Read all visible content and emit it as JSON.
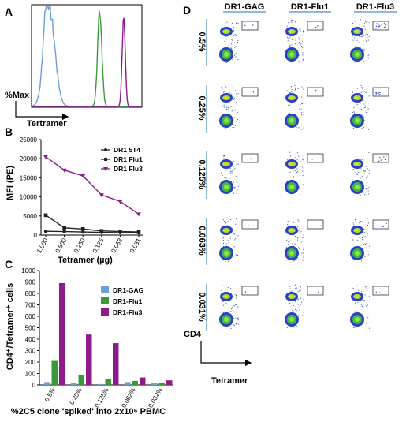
{
  "panels": {
    "A": {
      "letter": "A",
      "ylabel": "%Max",
      "xlabel": "Tertramer"
    },
    "B": {
      "letter": "B"
    },
    "C": {
      "letter": "C"
    },
    "D": {
      "letter": "D",
      "ylabel": "CD4",
      "xlabel": "Tetramer"
    }
  },
  "colors": {
    "blue": "#6b9fd6",
    "green": "#3a9a3a",
    "purple": "#8e1a8e",
    "black": "#222222"
  },
  "chart_data": [
    {
      "id": "A",
      "type": "line",
      "ylabel": "%Max",
      "xlabel": "Tertramer",
      "series": [
        {
          "color": "#6b9fd6",
          "peak": 0.16
        },
        {
          "color": "#3a9a3a",
          "peak": 0.62
        },
        {
          "color": "#8e1a8e",
          "peak": 0.84
        }
      ]
    },
    {
      "id": "B",
      "type": "line",
      "xlabel": "Tetramer (µg)",
      "ylabel": "MFI (PE)",
      "categories": [
        "1.000",
        "0.500",
        "0.250",
        "0.125",
        "0.063",
        "0.031"
      ],
      "ylim": [
        0,
        25000
      ],
      "yticks": [
        "0",
        "5000",
        "10000",
        "15000",
        "20000",
        "25000"
      ],
      "legend_position": "top-right",
      "series": [
        {
          "name": "DR1 5T4",
          "color": "#222222",
          "marker": "circle",
          "values": [
            1000,
            900,
            800,
            700,
            650,
            600
          ]
        },
        {
          "name": "DR1 Flu1",
          "color": "#222222",
          "marker": "square",
          "values": [
            5200,
            1900,
            1600,
            1100,
            900,
            800
          ]
        },
        {
          "name": "DR1 Flu3",
          "color": "#8e1a8e",
          "marker": "triangle",
          "values": [
            20500,
            17000,
            15500,
            10500,
            8800,
            5500
          ]
        }
      ]
    },
    {
      "id": "C",
      "type": "bar",
      "xlabel": "%2C5 clone 'spiked' into 2x10⁶ PBMC",
      "ylabel": "CD4⁺/Tetramer⁺ cells",
      "categories": [
        "0.5%",
        "0.25%",
        "0.125%",
        "0.062%",
        "0.032%"
      ],
      "ylim": [
        0,
        1000
      ],
      "yticks": [
        "0",
        "100",
        "200",
        "300",
        "400",
        "500",
        "600",
        "700",
        "800",
        "900",
        "1000"
      ],
      "legend_position": "top-right",
      "series": [
        {
          "name": "DR1-GAG",
          "color": "#6b9fd6",
          "values": [
            25,
            20,
            8,
            25,
            18
          ]
        },
        {
          "name": "DR1-Flu1",
          "color": "#3a9a3a",
          "values": [
            210,
            90,
            50,
            35,
            20
          ]
        },
        {
          "name": "DR1-Flu3",
          "color": "#8e1a8e",
          "values": [
            890,
            440,
            365,
            65,
            40
          ]
        }
      ]
    },
    {
      "id": "D",
      "type": "scatter",
      "ylabel": "CD4",
      "xlabel": "Tetramer",
      "columns": [
        "DR1-GAG",
        "DR1-Flu1",
        "DR1-Flu3"
      ],
      "rows": [
        "0.5%",
        "0.25%",
        "0.125%",
        "0.063%",
        "0.031%"
      ]
    }
  ]
}
